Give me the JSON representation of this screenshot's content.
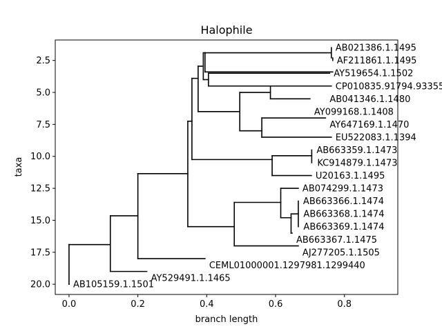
{
  "chart_data": {
    "type": "dendrogram",
    "title": "Halophile",
    "xlabel": "branch length",
    "ylabel": "taxa",
    "xlim": [
      -0.04,
      0.955
    ],
    "ylim": [
      20.8,
      0.9
    ],
    "x_ticks": [
      {
        "value": 0.0,
        "label": "0.0"
      },
      {
        "value": 0.2,
        "label": "0.2"
      },
      {
        "value": 0.4,
        "label": "0.4"
      },
      {
        "value": 0.6,
        "label": "0.6"
      },
      {
        "value": 0.8,
        "label": "0.8"
      }
    ],
    "y_ticks": [
      {
        "value": 2.5,
        "label": "2.5"
      },
      {
        "value": 5.0,
        "label": "5.0"
      },
      {
        "value": 7.5,
        "label": "7.5"
      },
      {
        "value": 10.0,
        "label": "10.0"
      },
      {
        "value": 12.5,
        "label": "12.5"
      },
      {
        "value": 15.0,
        "label": "15.0"
      },
      {
        "value": 17.5,
        "label": "17.5"
      },
      {
        "value": 20.0,
        "label": "20.0"
      }
    ],
    "tree": {
      "branch_length": 0.0,
      "children": [
        {
          "branch_length": 0.12,
          "children": [
            {
              "branch_length": 0.08,
              "children": [
                {
                  "branch_length": 0.145,
                  "children": [
                    {
                      "branch_length": 0.012,
                      "children": [
                        {
                          "branch_length": 0.025,
                          "children": [
                            {
                              "branch_length": 0.012,
                              "children": [
                                {
                                  "branch_length": 0.005,
                                  "children": [
                                    {
                                      "branch_length": 0.361,
                                      "children": [
                                        {
                                          "name": "AB021386.1.1495",
                                          "branch_length": 0.0
                                        },
                                        {
                                          "name": "AF211861.1.1495",
                                          "branch_length": 0.004
                                        }
                                      ]
                                    }
                                  ]
                                },
                                {
                                  "branch_length": 0.014,
                                  "children": [
                                    {
                                      "name": "AY519654.1.1502",
                                      "branch_length": 0.88
                                    },
                                    {
                                      "name": "CP010835.91794.93355",
                                      "branch_length": 0.0
                                    }
                                  ]
                                }
                              ]
                            },
                            {
                              "name": "CP010835.91794.93355-edge",
                              "hidden": true,
                              "branch_length": 0.0
                            }
                          ]
                        },
                        {
                          "branch_length": 0.12,
                          "children": [
                            {
                              "branch_length": 0.09,
                              "children": [
                                {
                                  "name": "AB041346.1.1480",
                                  "branch_length": 0.0
                                },
                                {
                                  "name": "AY099168.1.1408",
                                  "branch_length": 0.0
                                }
                              ]
                            }
                          ]
                        }
                      ]
                    }
                  ]
                }
              ]
            }
          ]
        }
      ]
    },
    "leaves": [
      {
        "name": "AB021386.1.1495",
        "y": 1.5,
        "x": 0.762
      },
      {
        "name": "AF211861.1.1495",
        "y": 2.5,
        "x": 0.766
      },
      {
        "name": "AY519654.1.1502",
        "y": 3.5,
        "x": 0.757
      },
      {
        "name": "CP010835.91794.93355",
        "y": 4.5,
        "x": 0.762
      },
      {
        "name": "AB041346.1.1480",
        "y": 5.5,
        "x": 0.745
      },
      {
        "name": "AY099168.1.1408",
        "y": 6.5,
        "x": 0.7
      },
      {
        "name": "AY647169.1.1470",
        "y": 7.5,
        "x": 0.745
      },
      {
        "name": "EU522083.1.1394",
        "y": 8.5,
        "x": 0.762
      },
      {
        "name": "AB663359.1.1473",
        "y": 9.5,
        "x": 0.707
      },
      {
        "name": "KC914879.1.1473",
        "y": 10.5,
        "x": 0.709
      },
      {
        "name": "U20163.1.1495",
        "y": 11.5,
        "x": 0.704
      },
      {
        "name": "AB074299.1.1473",
        "y": 12.5,
        "x": 0.666
      },
      {
        "name": "AB663366.1.1474",
        "y": 13.5,
        "x": 0.668
      },
      {
        "name": "AB663368.1.1474",
        "y": 14.5,
        "x": 0.669
      },
      {
        "name": "AB663369.1.1474",
        "y": 15.5,
        "x": 0.669
      },
      {
        "name": "AB663367.1.1475",
        "y": 16.5,
        "x": 0.648
      },
      {
        "name": "AJ277205.1.1505",
        "y": 17.5,
        "x": 0.666
      },
      {
        "name": "CEML01000001.1297981.1299440",
        "y": 18.5,
        "x": 0.395
      },
      {
        "name": "AY529491.1.1465",
        "y": 19.5,
        "x": 0.226
      },
      {
        "name": "AB105159.1.1501",
        "y": 20.0,
        "x": 0.0
      }
    ],
    "clades": [
      {
        "x": 0.0,
        "y_top": 16.9,
        "y_bottom": 20.0
      },
      {
        "x": 0.12,
        "y_top": 14.65,
        "y_bottom": 19.0
      },
      {
        "x": 0.2,
        "y_top": 11.35,
        "y_bottom": 18.0
      },
      {
        "x": 0.345,
        "y_top": 7.25,
        "y_bottom": 15.5
      },
      {
        "x": 0.357,
        "y_top": 3.9,
        "y_bottom": 10.25
      },
      {
        "x": 0.375,
        "y_top": 2.95,
        "y_bottom": 6.5
      },
      {
        "x": 0.39,
        "y_top": 1.9,
        "y_bottom": 4.0
      },
      {
        "x": 0.395,
        "y_top": 1.9,
        "y_bottom": 3.4
      },
      {
        "x": 0.405,
        "y_top": 3.5,
        "y_bottom": 4.5
      },
      {
        "x": 0.762,
        "y_top": 1.5,
        "y_bottom": 2.3
      },
      {
        "x": 0.766,
        "y_top": 2.3,
        "y_bottom": 2.5
      },
      {
        "x": 0.496,
        "y_top": 5.0,
        "y_bottom": 8.0
      },
      {
        "x": 0.585,
        "y_top": 4.5,
        "y_bottom": 5.5
      },
      {
        "x": 0.56,
        "y_top": 7.0,
        "y_bottom": 8.5
      },
      {
        "x": 0.59,
        "y_top": 9.95,
        "y_bottom": 11.5
      },
      {
        "x": 0.705,
        "y_top": 9.5,
        "y_bottom": 10.5
      },
      {
        "x": 0.48,
        "y_top": 13.6,
        "y_bottom": 17.0
      },
      {
        "x": 0.615,
        "y_top": 12.5,
        "y_bottom": 14.8
      },
      {
        "x": 0.645,
        "y_top": 14.5,
        "y_bottom": 16.0
      },
      {
        "x": 0.666,
        "y_top": 13.5,
        "y_bottom": 15.5
      }
    ],
    "branches": [
      {
        "x0": 0.0,
        "x1": 0.12,
        "y": 16.9
      },
      {
        "x0": 0.0,
        "x1": 0.0,
        "y": 20.0
      },
      {
        "x0": 0.12,
        "x1": 0.2,
        "y": 14.65
      },
      {
        "x0": 0.12,
        "x1": 0.226,
        "y": 19.0
      },
      {
        "x0": 0.2,
        "x1": 0.345,
        "y": 11.35
      },
      {
        "x0": 0.2,
        "x1": 0.395,
        "y": 18.0
      },
      {
        "x0": 0.345,
        "x1": 0.357,
        "y": 7.25
      },
      {
        "x0": 0.345,
        "x1": 0.48,
        "y": 15.5
      },
      {
        "x0": 0.357,
        "x1": 0.375,
        "y": 3.9
      },
      {
        "x0": 0.357,
        "x1": 0.59,
        "y": 10.25
      },
      {
        "x0": 0.375,
        "x1": 0.39,
        "y": 2.95
      },
      {
        "x0": 0.375,
        "x1": 0.496,
        "y": 6.5
      },
      {
        "x0": 0.39,
        "x1": 0.395,
        "y": 1.9
      },
      {
        "x0": 0.39,
        "x1": 0.405,
        "y": 4.0
      },
      {
        "x0": 0.395,
        "x1": 0.762,
        "y": 1.9
      },
      {
        "x0": 0.395,
        "x1": 0.766,
        "y": 3.4
      },
      {
        "x0": 0.405,
        "x1": 0.757,
        "y": 3.5
      },
      {
        "x0": 0.405,
        "x1": 0.762,
        "y": 4.5
      },
      {
        "x0": 0.496,
        "x1": 0.585,
        "y": 5.0
      },
      {
        "x0": 0.496,
        "x1": 0.56,
        "y": 8.0
      },
      {
        "x0": 0.585,
        "x1": 0.745,
        "y": 4.5
      },
      {
        "x0": 0.585,
        "x1": 0.7,
        "y": 5.5
      },
      {
        "x0": 0.56,
        "x1": 0.745,
        "y": 7.0
      },
      {
        "x0": 0.56,
        "x1": 0.762,
        "y": 8.5
      },
      {
        "x0": 0.59,
        "x1": 0.705,
        "y": 9.95
      },
      {
        "x0": 0.59,
        "x1": 0.704,
        "y": 11.5
      },
      {
        "x0": 0.48,
        "x1": 0.615,
        "y": 13.6
      },
      {
        "x0": 0.48,
        "x1": 0.666,
        "y": 17.0
      },
      {
        "x0": 0.615,
        "x1": 0.666,
        "y": 12.5
      },
      {
        "x0": 0.615,
        "x1": 0.645,
        "y": 14.8
      },
      {
        "x0": 0.645,
        "x1": 0.666,
        "y": 14.5
      },
      {
        "x0": 0.645,
        "x1": 0.648,
        "y": 16.0
      }
    ]
  }
}
